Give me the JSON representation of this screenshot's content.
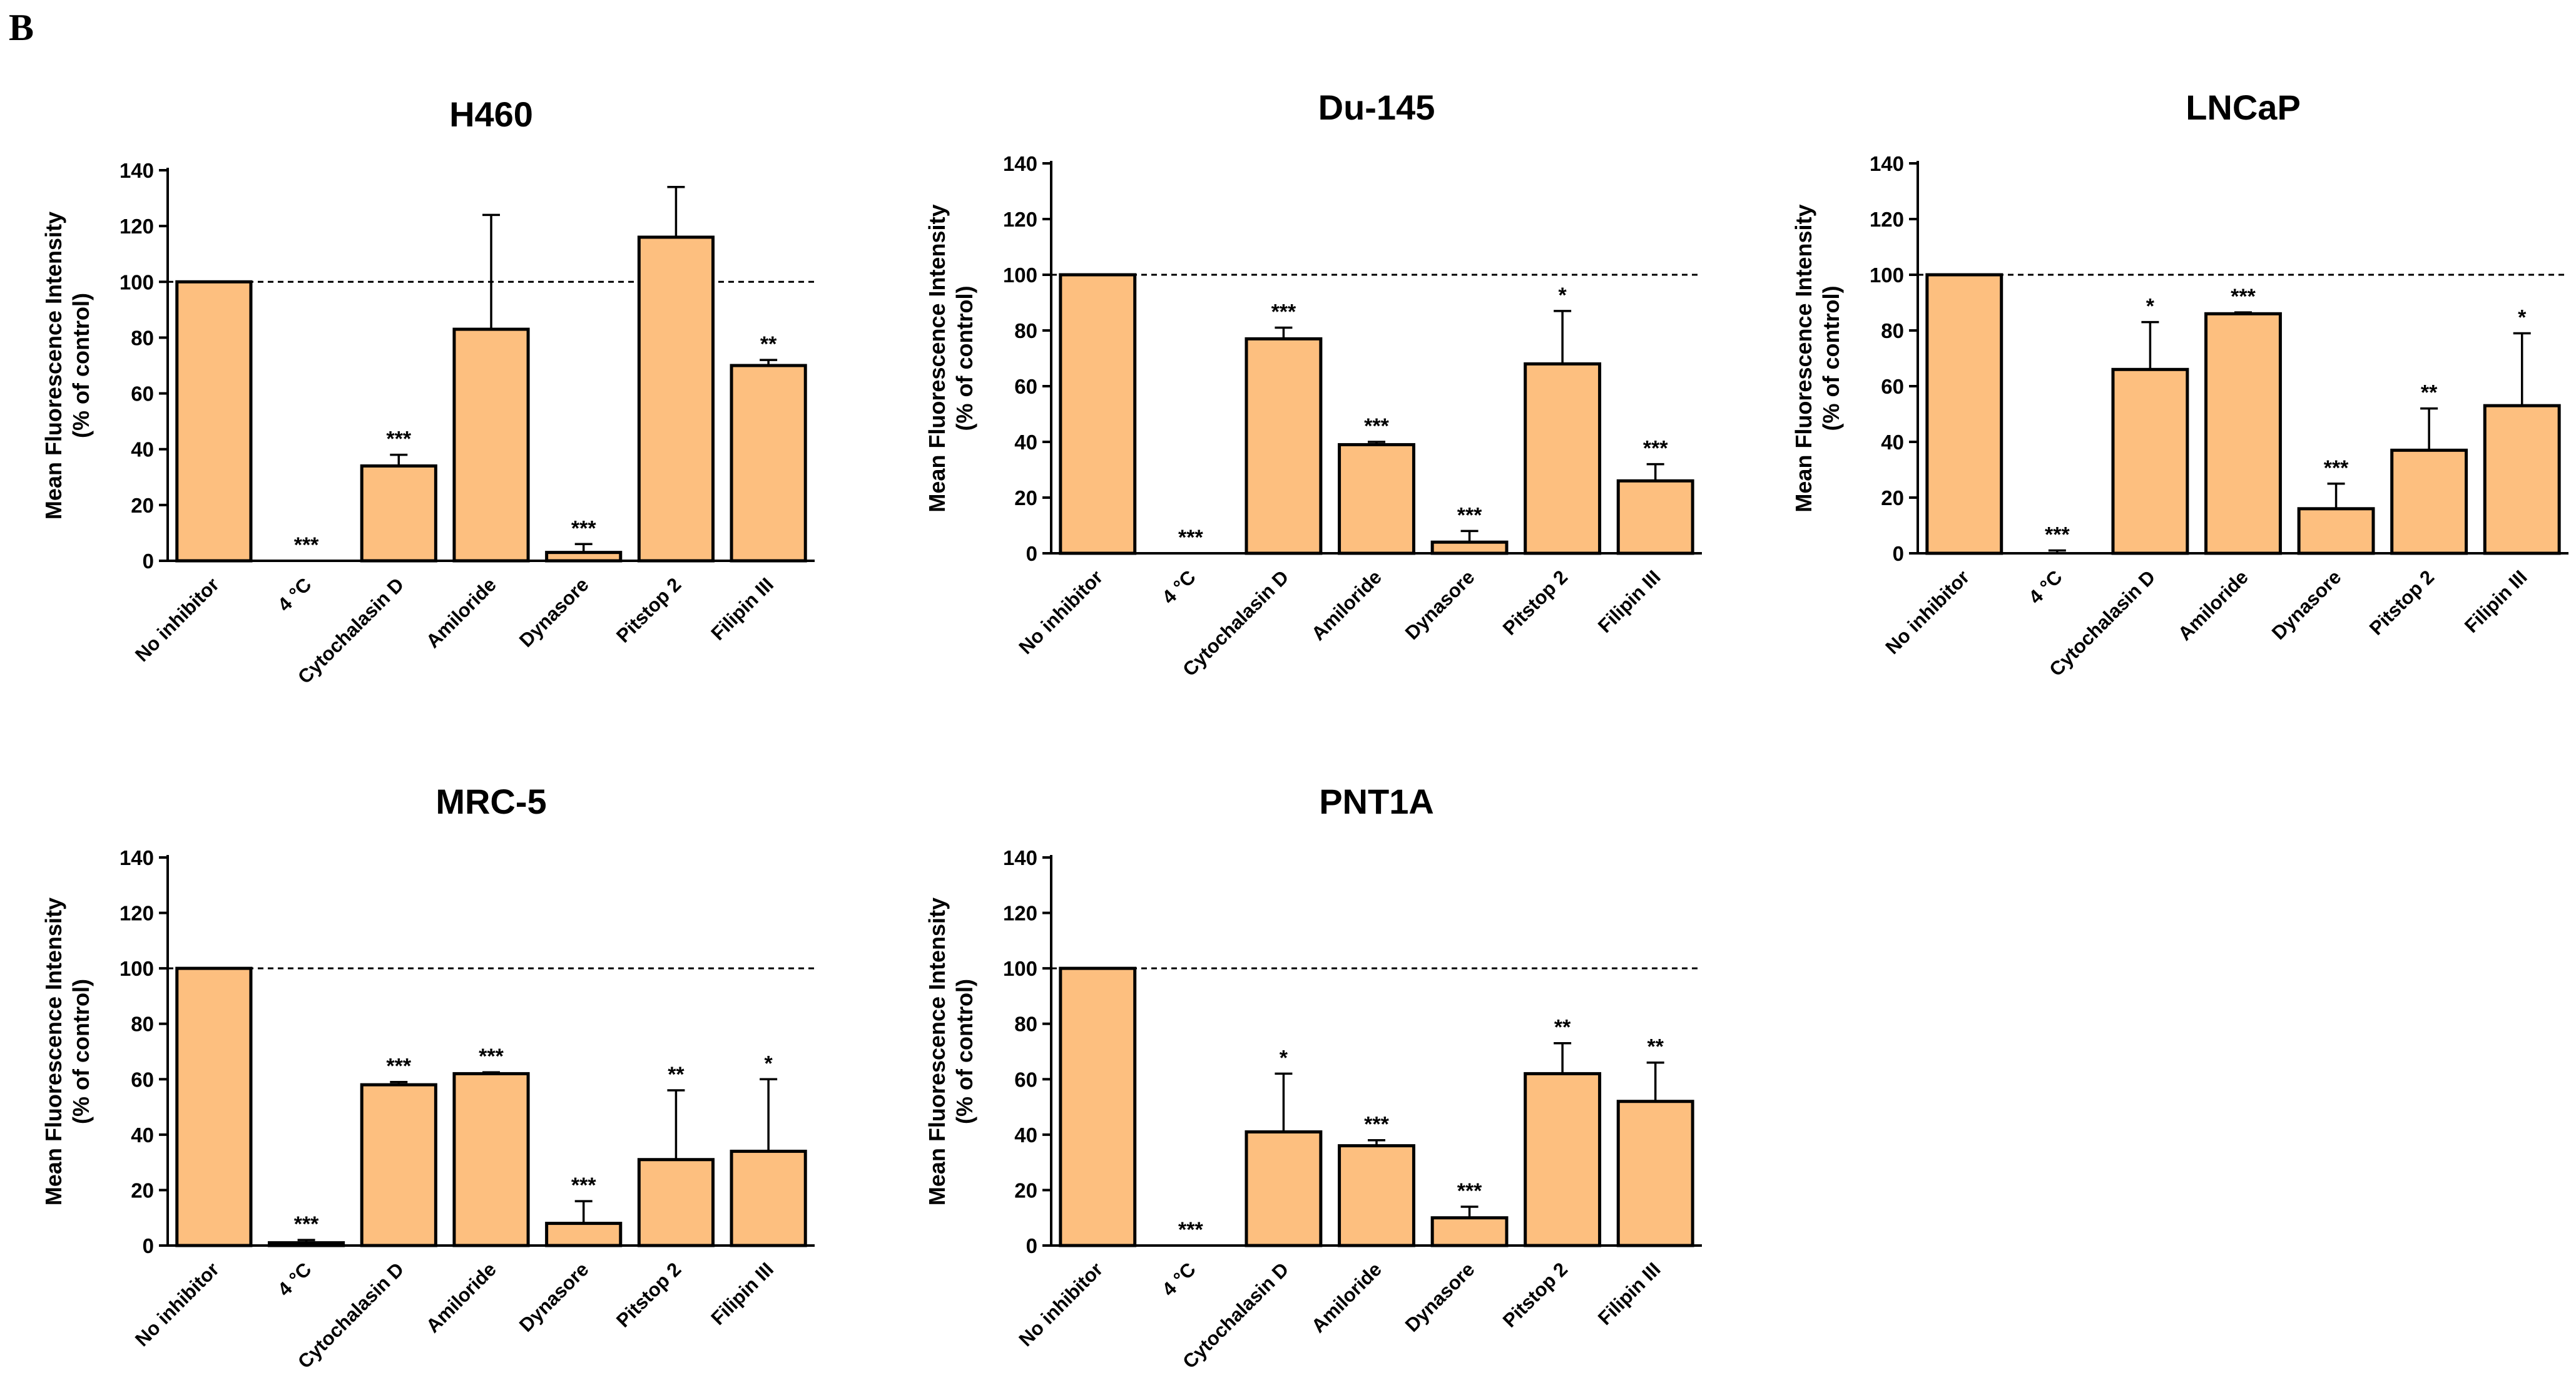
{
  "panel_label": "B",
  "colors": {
    "bar_fill": "#FDBF7F",
    "bar_stroke": "#000000"
  },
  "chart_data": [
    {
      "type": "bar",
      "title": "H460",
      "ylabel": "Mean Fluorescence Intensity",
      "ylabel2": "(% of control)",
      "ylim": [
        0,
        140
      ],
      "yticks": [
        "0",
        "20",
        "40",
        "60",
        "80",
        "100",
        "120",
        "140"
      ],
      "reference_line": 100,
      "categories": [
        "No inhibitor",
        "4 °C",
        "Cytochalasin D",
        "Amiloride",
        "Dynasore",
        "Pitstop 2",
        "Filipin III"
      ],
      "values": [
        100,
        0,
        34,
        83,
        3,
        116,
        70
      ],
      "errors": [
        0,
        0,
        4,
        41,
        3,
        18,
        2
      ],
      "significance": [
        "",
        "***",
        "***",
        "",
        "***",
        "",
        "**"
      ]
    },
    {
      "type": "bar",
      "title": "Du-145",
      "ylabel": "Mean Fluorescence Intensity",
      "ylabel2": "(% of control)",
      "ylim": [
        0,
        140
      ],
      "yticks": [
        "0",
        "20",
        "40",
        "60",
        "80",
        "100",
        "120",
        "140"
      ],
      "reference_line": 100,
      "categories": [
        "No inhibitor",
        "4 °C",
        "Cytochalasin D",
        "Amiloride",
        "Dynasore",
        "Pitstop 2",
        "Filipin III"
      ],
      "values": [
        100,
        0,
        77,
        39,
        4,
        68,
        26
      ],
      "errors": [
        0,
        0,
        4,
        1,
        4,
        19,
        6
      ],
      "significance": [
        "",
        "***",
        "***",
        "***",
        "***",
        "*",
        "***"
      ]
    },
    {
      "type": "bar",
      "title": "LNCaP",
      "ylabel": "Mean Fluorescence Intensity",
      "ylabel2": "(% of control)",
      "ylim": [
        0,
        140
      ],
      "yticks": [
        "0",
        "20",
        "40",
        "60",
        "80",
        "100",
        "120",
        "140"
      ],
      "reference_line": 100,
      "categories": [
        "No inhibitor",
        "4 °C",
        "Cytochalasin D",
        "Amiloride",
        "Dynasore",
        "Pitstop 2",
        "Filipin III"
      ],
      "values": [
        100,
        0,
        66,
        86,
        16,
        37,
        53
      ],
      "errors": [
        0,
        1,
        17,
        0.5,
        9,
        15,
        26
      ],
      "significance": [
        "",
        "***",
        "*",
        "***",
        "***",
        "**",
        "*"
      ]
    },
    {
      "type": "bar",
      "title": "MRC-5",
      "ylabel": "Mean Fluorescence Intensity",
      "ylabel2": "(% of control)",
      "ylim": [
        0,
        140
      ],
      "yticks": [
        "0",
        "20",
        "40",
        "60",
        "80",
        "100",
        "120",
        "140"
      ],
      "reference_line": 100,
      "categories": [
        "No inhibitor",
        "4 °C",
        "Cytochalasin D",
        "Amiloride",
        "Dynasore",
        "Pitstop 2",
        "Filipin III"
      ],
      "values": [
        100,
        1,
        58,
        62,
        8,
        31,
        34
      ],
      "errors": [
        0,
        1,
        1,
        0.5,
        8,
        25,
        26
      ],
      "significance": [
        "",
        "***",
        "***",
        "***",
        "***",
        "**",
        "*"
      ]
    },
    {
      "type": "bar",
      "title": "PNT1A",
      "ylabel": "Mean Fluorescence Intensity",
      "ylabel2": "(% of control)",
      "ylim": [
        0,
        140
      ],
      "yticks": [
        "0",
        "20",
        "40",
        "60",
        "80",
        "100",
        "120",
        "140"
      ],
      "reference_line": 100,
      "categories": [
        "No inhibitor",
        "4 °C",
        "Cytochalasin D",
        "Amiloride",
        "Dynasore",
        "Pitstop 2",
        "Filipin III"
      ],
      "values": [
        100,
        0,
        41,
        36,
        10,
        62,
        52
      ],
      "errors": [
        0,
        0,
        21,
        2,
        4,
        11,
        14
      ],
      "significance": [
        "",
        "***",
        "*",
        "***",
        "***",
        "**",
        "**"
      ]
    }
  ]
}
